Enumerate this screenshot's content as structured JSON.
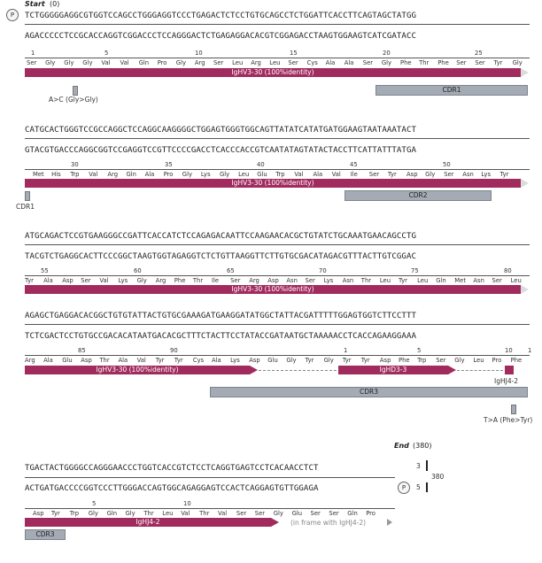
{
  "start": {
    "label": "Start",
    "value": "(0)",
    "marker": "P"
  },
  "end": {
    "label": "End",
    "value": "(380)",
    "marker": "P"
  },
  "rows": [
    {
      "top": "TCTGGGGGAGGCGTGGTCCAGCCTGGGAGGTCCCTGAGACTCTCCTGTGCAGCCTCTGGATTCACCTTCAGTAGCTATGG",
      "bottom": "AGACCCCCTCCGCACCAGGTCGGACCCTCCAGGGACTCTGAGAGGACACGTCGGAGACCTAAGTGGAAGTCATCGATACC",
      "nums": [
        "1",
        "5",
        "10",
        "15",
        "20",
        "25"
      ],
      "aa": [
        "Ser",
        "Gly",
        "Gly",
        "Gly",
        "Val",
        "Val",
        "Gln",
        "Pro",
        "Gly",
        "Arg",
        "Ser",
        "Leu",
        "Arg",
        "Leu",
        "Ser",
        "Cys",
        "Ala",
        "Ala",
        "Ser",
        "Gly",
        "Phe",
        "Thr",
        "Phe",
        "Ser",
        "Ser",
        "Tyr",
        "Gly"
      ],
      "feature": "IgHV3-30 (100%identity)",
      "cdr": "CDR1",
      "mutation": "A>C (Gly>Gly)"
    },
    {
      "top": "CATGCACTGGGTCCGCCAGGCTCCAGGCAAGGGGCTGGAGTGGGTGGCAGTTATATCATATGATGGAAGTAATAAATACT",
      "bottom": "GTACGTGACCCAGGCGGTCCGAGGTCCGTTCCCCGACCTCACCCACCGTCAATATAGTATACTACCTTCATTATTTATGA",
      "nums": [
        "30",
        "35",
        "40",
        "45",
        "50"
      ],
      "aa": [
        "Met",
        "His",
        "Trp",
        "Val",
        "Arg",
        "Gln",
        "Ala",
        "Pro",
        "Gly",
        "Lys",
        "Gly",
        "Leu",
        "Glu",
        "Trp",
        "Val",
        "Ala",
        "Val",
        "Ile",
        "Ser",
        "Tyr",
        "Asp",
        "Gly",
        "Ser",
        "Asn",
        "Lys",
        "Tyr"
      ],
      "feature": "IgHV3-30 (100%identity)",
      "cdr_left": "CDR1",
      "cdr": "CDR2"
    },
    {
      "top": "ATGCAGACTCCGTGAAGGGCCGATTCACCATCTCCAGAGACAATTCCAAGAACACGCTGTATCTGCAAATGAACAGCCTG",
      "bottom": "TACGTCTGAGGCACTTCCCGGCTAAGTGGTAGAGGTCTCTGTTAAGGTTCTTGTGCGACATAGACGTTTACTTGTCGGAC",
      "nums": [
        "55",
        "60",
        "65",
        "70",
        "75",
        "80"
      ],
      "aa": [
        "Tyr",
        "Ala",
        "Asp",
        "Ser",
        "Val",
        "Lys",
        "Gly",
        "Arg",
        "Phe",
        "Thr",
        "Ile",
        "Ser",
        "Arg",
        "Asp",
        "Asn",
        "Ser",
        "Lys",
        "Asn",
        "Thr",
        "Leu",
        "Tyr",
        "Leu",
        "Gln",
        "Met",
        "Asn",
        "Ser",
        "Leu"
      ],
      "feature": "IgHV3-30 (100%identity)"
    },
    {
      "top": "AGAGCTGAGGACACGGCTGTGTATTACTGTGCGAAAGATGAAGGATATGGCTATTACGATTTTTGGAGTGGTCTTCCTTT",
      "bottom": "TCTCGACTCCTGTGCCGACACATAATGACACGCTTTCTACTTCCTATACCGATAATGCTAAAAACCTCACCAGAAGGAAA",
      "nums_left": [
        "85",
        "90"
      ],
      "nums_mid": [
        "1",
        "5",
        "10"
      ],
      "num_right": "1",
      "aa": [
        "Arg",
        "Ala",
        "Glu",
        "Asp",
        "Thr",
        "Ala",
        "Val",
        "Tyr",
        "Tyr",
        "Cys",
        "Ala",
        "Lys",
        "Asp",
        "Glu",
        "Gly",
        "Tyr",
        "Gly",
        "Tyr",
        "Tyr",
        "Asp",
        "Phe",
        "Trp",
        "Ser",
        "Gly",
        "Leu",
        "Pro",
        "Phe"
      ],
      "feature_v": "IgHV3-30 (100%identity)",
      "feature_d": "IgHD3-3",
      "feature_j": "IgHJ4-2",
      "cdr": "CDR3",
      "mutation": "T>A (Phe>Tyr)"
    },
    {
      "top": "TGACTACTGGGGCCAGGGAACCCTGGTCACCGTCTCCTCAGGTGAGTCCTCACAACCTCT",
      "bottom": "ACTGATGACCCCGGTCCCTTGGGACCAGTGGCAGAGGAGTCCACTCAGGAGTGTTGGAGA",
      "nums": [
        "5",
        "10"
      ],
      "aa": [
        "Asp",
        "Tyr",
        "Trp",
        "Gly",
        "Gln",
        "Gly",
        "Thr",
        "Leu",
        "Val",
        "Thr",
        "Val",
        "Ser",
        "Ser",
        "Gly",
        "Glu",
        "Ser",
        "Ser",
        "Gln",
        "Pro"
      ],
      "feature": "IgHJ4-2",
      "frame_note": "(in frame with IgHJ4-2)",
      "cdr": "CDR3",
      "end_marks": [
        "3",
        "5"
      ],
      "end_num": "380"
    }
  ],
  "colors": {
    "feature": "#a12b5e",
    "cdr": "#a4abb4"
  }
}
